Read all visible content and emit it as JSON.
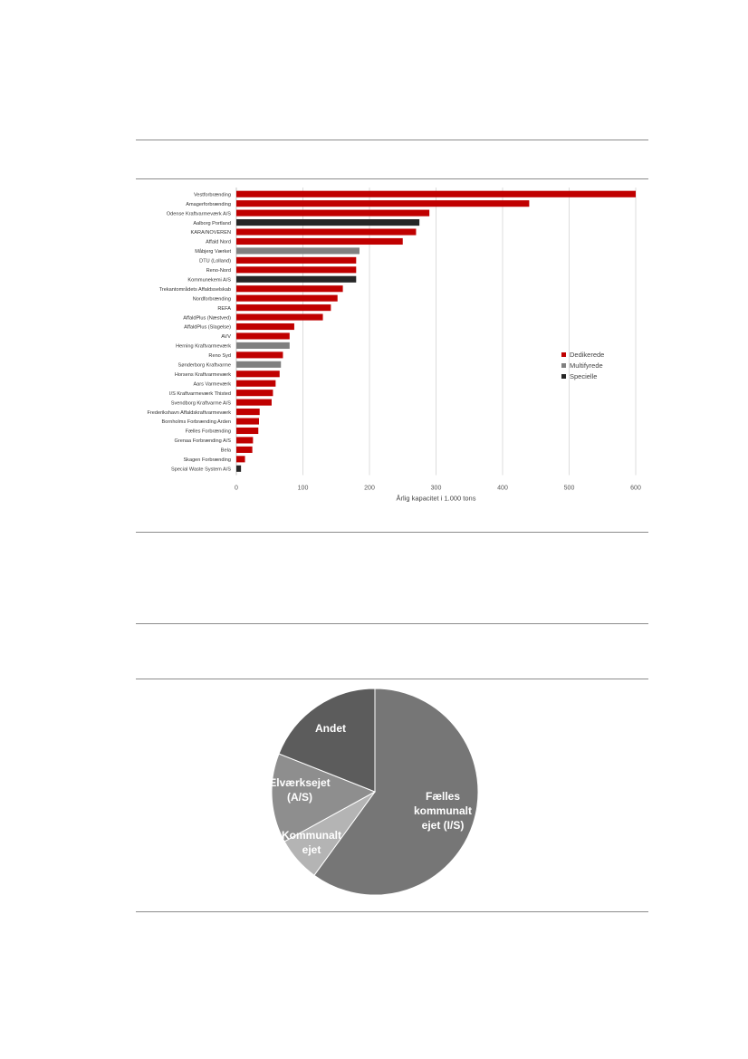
{
  "chart_data": [
    {
      "type": "bar",
      "orientation": "horizontal",
      "xlabel": "Årlig kapacitet i 1.000 tons",
      "xlim": [
        0,
        600
      ],
      "xticks": [
        "0",
        "100",
        "200",
        "300",
        "400",
        "500",
        "600"
      ],
      "grid": true,
      "legend_position": "right",
      "legend": [
        {
          "name": "Dedikerede",
          "color": "#c00000"
        },
        {
          "name": "Multifyrede",
          "color": "#808080"
        },
        {
          "name": "Specielle",
          "color": "#262626"
        }
      ],
      "categories": [
        "Vestforbrænding",
        "Amagerforbrænding",
        "Odense Kraftvarmeværk A/S",
        "Aalborg Portland",
        "KARA/NOVEREN",
        "Affald Nord",
        "Måbjerg Værket",
        "DTU (Lolland)",
        "Reno-Nord",
        "Kommunekemi A/S",
        "Trekantområdets Affaldsselskab",
        "Nordforbrænding",
        "REFA",
        "AffaldPlus (Næstved)",
        "AffaldPlus (Slagelse)",
        "AVV",
        "Herning Kraftvarmeværk",
        "Reno Syd",
        "Sønderborg Kraftvarme",
        "Horsens Kraftvarmeværk",
        "Aars Varmeværk",
        "I/S Kraftvarmeværk Thisted",
        "Svendborg Kraftvarme A/S",
        "Frederikshavn Affaldskraftvarmeværk",
        "Bornholms Forbrænding Arden",
        "Fælles Forbrænding",
        "Grenaa Forbrænding A/S",
        "Bela",
        "Skagen Forbrænding",
        "Special Waste System A/S"
      ],
      "values": [
        600,
        440,
        290,
        275,
        270,
        250,
        185,
        180,
        180,
        180,
        160,
        152,
        142,
        130,
        87,
        80,
        80,
        70,
        67,
        65,
        59,
        55,
        53,
        35,
        34,
        33,
        25,
        24,
        13,
        7
      ],
      "groups": [
        "Dedikerede",
        "Dedikerede",
        "Dedikerede",
        "Specielle",
        "Dedikerede",
        "Dedikerede",
        "Multifyrede",
        "Dedikerede",
        "Dedikerede",
        "Specielle",
        "Dedikerede",
        "Dedikerede",
        "Dedikerede",
        "Dedikerede",
        "Dedikerede",
        "Dedikerede",
        "Multifyrede",
        "Dedikerede",
        "Multifyrede",
        "Dedikerede",
        "Dedikerede",
        "Dedikerede",
        "Dedikerede",
        "Dedikerede",
        "Dedikerede",
        "Dedikerede",
        "Dedikerede",
        "Dedikerede",
        "Dedikerede",
        "Specielle"
      ]
    },
    {
      "type": "pie",
      "slices": [
        {
          "label": "Fælles kommunalt ejet (I/S)",
          "value": 60,
          "color": "#767676"
        },
        {
          "label": "Kommunalt ejet",
          "value": 7,
          "color": "#b4b4b4"
        },
        {
          "label": "Elværksejet (A/S)",
          "value": 14,
          "color": "#8e8e8e"
        },
        {
          "label": "Andet",
          "value": 19,
          "color": "#5c5c5c"
        }
      ]
    }
  ]
}
